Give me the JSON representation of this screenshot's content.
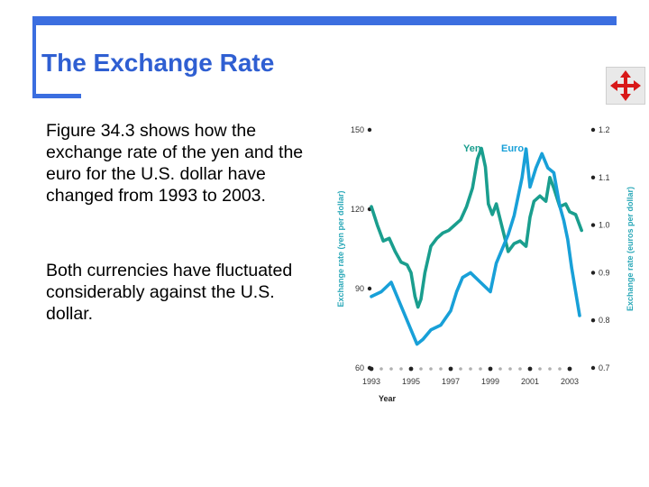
{
  "slide": {
    "title": "The Exchange Rate",
    "paragraph_1": "Figure 34.3 shows how the exchange rate of the yen and the euro for the U.S. dollar have changed from 1993 to 2003.",
    "paragraph_2": "Both currencies have fluctuated considerably against the U.S. dollar.",
    "accent_color": "#3b6ee0",
    "nav_icon": "four-arrows-move-icon"
  },
  "chart_data": {
    "type": "line",
    "xlabel": "Year",
    "ylabel_left": "Exchange rate (yen per dollar)",
    "ylabel_right": "Exchange rate (euros per dollar)",
    "x_ticks": [
      "1993",
      "1995",
      "1997",
      "1999",
      "2001",
      "2003"
    ],
    "xlim": [
      1993,
      2004
    ],
    "y_left_ticks": [
      "60",
      "90",
      "120",
      "150"
    ],
    "y_left_lim": [
      60,
      150
    ],
    "y_right_ticks": [
      "0.7",
      "0.8",
      "0.9",
      "1.0",
      "1.1",
      "1.2"
    ],
    "y_right_lim": [
      0.7,
      1.2
    ],
    "grid": false,
    "series": [
      {
        "name": "Yen",
        "axis": "left",
        "color": "#1a9e8e",
        "x": [
          1993.0,
          1993.3,
          1993.6,
          1993.9,
          1994.2,
          1994.5,
          1994.8,
          1995.0,
          1995.2,
          1995.35,
          1995.5,
          1995.7,
          1996.0,
          1996.3,
          1996.6,
          1996.9,
          1997.2,
          1997.5,
          1997.8,
          1998.1,
          1998.35,
          1998.55,
          1998.75,
          1998.9,
          1999.1,
          1999.3,
          1999.6,
          1999.9,
          2000.2,
          2000.5,
          2000.8,
          2001.0,
          2001.2,
          2001.5,
          2001.8,
          2002.0,
          2002.2,
          2002.5,
          2002.8,
          2003.0,
          2003.3,
          2003.6
        ],
        "values": [
          121,
          114,
          108,
          109,
          104,
          100,
          99,
          96,
          87,
          83,
          86,
          96,
          106,
          109,
          111,
          112,
          114,
          116,
          121,
          128,
          139,
          143,
          136,
          122,
          118,
          122,
          113,
          104,
          107,
          108,
          106,
          117,
          123,
          125,
          123,
          132,
          128,
          121,
          122,
          119,
          118,
          112
        ]
      },
      {
        "name": "Euro",
        "axis": "right",
        "color": "#18a0d8",
        "x": [
          1993.0,
          1993.5,
          1994.0,
          1994.5,
          1995.0,
          1995.3,
          1995.6,
          1996.0,
          1996.5,
          1997.0,
          1997.3,
          1997.6,
          1998.0,
          1998.5,
          1999.0,
          1999.3,
          1999.6,
          1999.9,
          2000.2,
          2000.4,
          2000.6,
          2000.8,
          2001.0,
          2001.3,
          2001.6,
          2001.9,
          2002.2,
          2002.5,
          2002.7,
          2002.9,
          2003.1,
          2003.3,
          2003.5
        ],
        "values": [
          0.85,
          0.86,
          0.88,
          0.83,
          0.78,
          0.75,
          0.76,
          0.78,
          0.79,
          0.82,
          0.86,
          0.89,
          0.9,
          0.88,
          0.86,
          0.92,
          0.95,
          0.98,
          1.02,
          1.06,
          1.1,
          1.16,
          1.08,
          1.12,
          1.15,
          1.12,
          1.11,
          1.04,
          1.01,
          0.97,
          0.91,
          0.86,
          0.81
        ]
      }
    ],
    "series_labels": [
      "Yen",
      "Euro"
    ]
  }
}
